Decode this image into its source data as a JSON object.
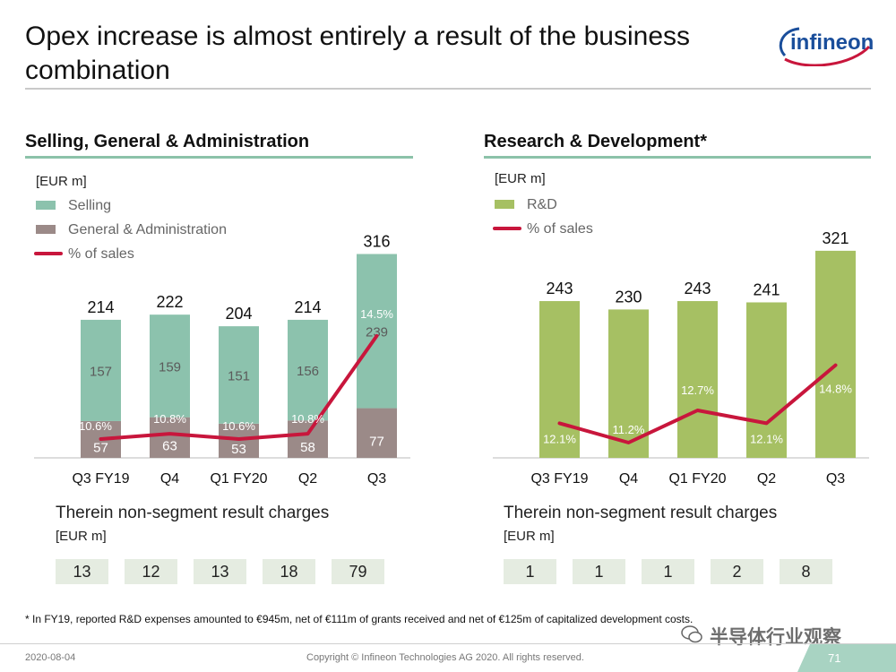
{
  "title": "Opex increase is almost entirely a result of the business combination",
  "logo_text": "infineon",
  "colors": {
    "ga": "#9b8a88",
    "selling": "#8cc2ad",
    "rnd": "#a6c063",
    "pct_line": "#c8163c",
    "charge_bg": "#e5ece1"
  },
  "chart_data": [
    {
      "type": "bar",
      "title": "Selling, General & Administration",
      "unit_label": "[EUR m]",
      "stacked": true,
      "categories": [
        "Q3 FY19",
        "Q4",
        "Q1 FY20",
        "Q2",
        "Q3"
      ],
      "series": [
        {
          "name": "General & Administration",
          "values": [
            57,
            63,
            53,
            58,
            77
          ]
        },
        {
          "name": "Selling",
          "values": [
            157,
            159,
            151,
            156,
            239
          ]
        }
      ],
      "totals": [
        214,
        222,
        204,
        214,
        316
      ],
      "line_series": {
        "name": "% of sales",
        "values": [
          10.6,
          10.8,
          10.6,
          10.8,
          14.5
        ],
        "labels": [
          "10.6%",
          "10.8%",
          "10.6%",
          "10.8%",
          "14.5%"
        ]
      },
      "legend_position": "top-left",
      "charges_label": "Therein non-segment result charges",
      "charges_unit": "[EUR m]",
      "charges": [
        13,
        12,
        13,
        18,
        79
      ]
    },
    {
      "type": "bar",
      "title": "Research & Development*",
      "unit_label": "[EUR m]",
      "stacked": false,
      "categories": [
        "Q3 FY19",
        "Q4",
        "Q1 FY20",
        "Q2",
        "Q3"
      ],
      "series": [
        {
          "name": "R&D",
          "values": [
            243,
            230,
            243,
            241,
            321
          ]
        }
      ],
      "totals": [
        243,
        230,
        243,
        241,
        321
      ],
      "line_series": {
        "name": "% of sales",
        "values": [
          12.1,
          11.2,
          12.7,
          12.1,
          14.8
        ],
        "labels": [
          "12.1%",
          "11.2%",
          "12.7%",
          "12.1%",
          "14.8%"
        ]
      },
      "legend_position": "top-left",
      "charges_label": "Therein non-segment result charges",
      "charges_unit": "[EUR m]",
      "charges": [
        1,
        1,
        1,
        2,
        8
      ]
    }
  ],
  "footnote": "* In FY19, reported R&D expenses amounted to €945m, net of €111m of grants received and net of €125m of capitalized development costs.",
  "footer": {
    "date": "2020-08-04",
    "copyright": "Copyright © Infineon Technologies AG 2020. All rights reserved.",
    "page": "71"
  },
  "watermark": "半导体行业观察"
}
